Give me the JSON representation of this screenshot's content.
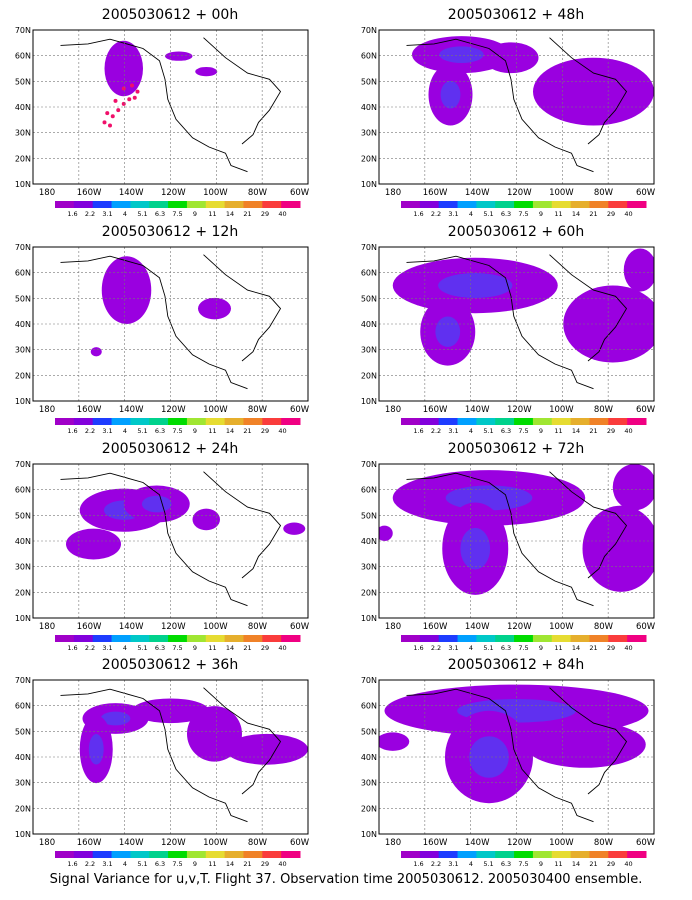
{
  "caption": "Signal Variance for u,v,T. Flight 37. Observation time 2005030612. 2005030400 ensemble.",
  "lat_ticks": [
    "70N",
    "60N",
    "50N",
    "40N",
    "30N",
    "20N",
    "10N"
  ],
  "lon_ticks": [
    "180",
    "160W",
    "140W",
    "120W",
    "100W",
    "80W",
    "60W"
  ],
  "colorbar": {
    "labels": [
      "1.6",
      "2.2",
      "3.1",
      "4",
      "5.1",
      "6.3",
      "7.5",
      "9",
      "11",
      "14",
      "21",
      "29",
      "40"
    ],
    "colors": [
      "#a000c8",
      "#8200dc",
      "#1e3cff",
      "#00a0ff",
      "#00c8c8",
      "#00d28c",
      "#00dc00",
      "#a0e632",
      "#e6dc32",
      "#e6af2d",
      "#f08228",
      "#fa3c3c",
      "#f00082"
    ]
  },
  "panels": [
    {
      "title": "2005030612 + 00h",
      "level": 0
    },
    {
      "title": "2005030612 + 48h",
      "level": 4
    },
    {
      "title": "2005030612 + 12h",
      "level": 1
    },
    {
      "title": "2005030612 + 60h",
      "level": 5
    },
    {
      "title": "2005030612 + 24h",
      "level": 2
    },
    {
      "title": "2005030612 + 72h",
      "level": 6
    },
    {
      "title": "2005030612 + 36h",
      "level": 3
    },
    {
      "title": "2005030612 + 84h",
      "level": 7
    }
  ]
}
